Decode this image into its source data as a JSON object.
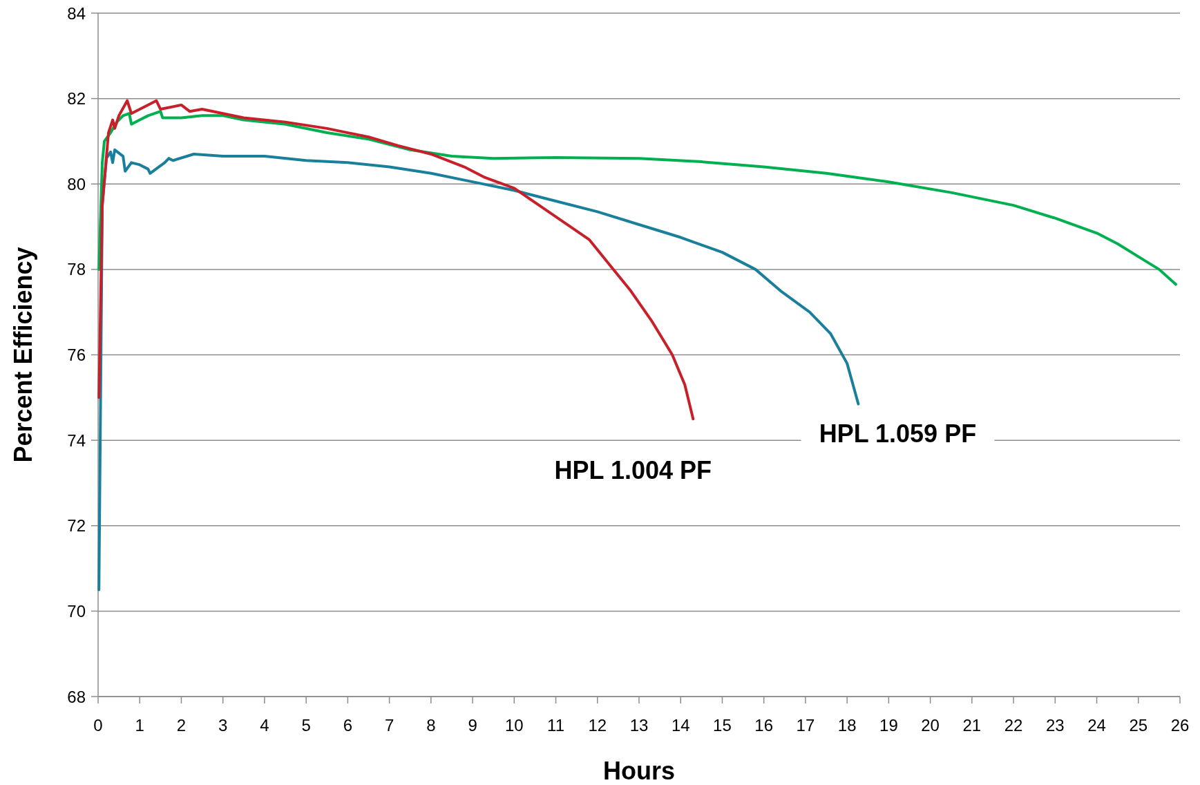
{
  "chart_data": {
    "type": "line",
    "xlabel": "Hours",
    "ylabel": "Percent Efficiency",
    "xlim": [
      0,
      26
    ],
    "ylim": [
      68,
      84
    ],
    "xticks": [
      0,
      1,
      2,
      3,
      4,
      5,
      6,
      7,
      8,
      9,
      10,
      11,
      12,
      13,
      14,
      15,
      16,
      17,
      18,
      19,
      20,
      21,
      22,
      23,
      24,
      25,
      26
    ],
    "yticks": [
      68,
      70,
      72,
      74,
      76,
      78,
      80,
      82,
      84
    ],
    "grid": "y",
    "marker": "none",
    "line_style": "solid",
    "series": [
      {
        "color": "#00b050",
        "x": [
          0.02,
          0.1,
          0.15,
          0.3,
          0.45,
          0.6,
          0.75,
          0.8,
          1,
          1.2,
          1.5,
          1.55,
          2,
          2.5,
          3,
          3.5,
          4.5,
          5.5,
          6.5,
          7.5,
          8.5,
          9.5,
          11,
          13,
          14.5,
          16,
          17.5,
          19,
          20.5,
          22,
          23,
          24,
          24.5,
          25,
          25.5,
          25.9
        ],
        "values": [
          78,
          80.5,
          81,
          81.2,
          81.45,
          81.6,
          81.65,
          81.4,
          81.5,
          81.6,
          81.7,
          81.55,
          81.55,
          81.6,
          81.6,
          81.5,
          81.4,
          81.2,
          81.05,
          80.8,
          80.65,
          80.6,
          80.62,
          80.6,
          80.52,
          80.4,
          80.25,
          80.05,
          79.8,
          79.5,
          79.2,
          78.85,
          78.6,
          78.3,
          78,
          77.65
        ]
      },
      {
        "name": "HPL 1.059 PF",
        "color": "#1a7f9b",
        "x": [
          0.02,
          0.1,
          0.2,
          0.3,
          0.35,
          0.4,
          0.6,
          0.65,
          0.8,
          1,
          1.2,
          1.25,
          1.6,
          1.7,
          1.8,
          2.3,
          3,
          4,
          5,
          6,
          7,
          8,
          9,
          10,
          11,
          12,
          13,
          14,
          15,
          15.8,
          16.4,
          17.1,
          17.6,
          18,
          18.27
        ],
        "values": [
          70.5,
          79.5,
          80.6,
          80.75,
          80.5,
          80.8,
          80.65,
          80.3,
          80.5,
          80.45,
          80.35,
          80.25,
          80.5,
          80.6,
          80.55,
          80.7,
          80.65,
          80.65,
          80.55,
          80.5,
          80.4,
          80.25,
          80.05,
          79.85,
          79.6,
          79.35,
          79.05,
          78.75,
          78.4,
          78,
          77.5,
          77,
          76.5,
          75.8,
          74.85
        ]
      },
      {
        "name": "HPL 1.004 PF",
        "color": "#c8202a",
        "x": [
          0.02,
          0.1,
          0.25,
          0.35,
          0.4,
          0.5,
          0.7,
          0.8,
          1.1,
          1.4,
          1.5,
          2,
          2.2,
          2.5,
          3,
          3.5,
          4.5,
          5.5,
          6.5,
          7.2,
          8,
          8.8,
          9.3,
          10,
          10.6,
          11.2,
          11.8,
          12.3,
          12.8,
          13.3,
          13.8,
          14.1,
          14.3
        ],
        "values": [
          75,
          79.5,
          81.2,
          81.5,
          81.3,
          81.6,
          81.95,
          81.65,
          81.8,
          81.95,
          81.75,
          81.85,
          81.7,
          81.75,
          81.65,
          81.55,
          81.45,
          81.3,
          81.1,
          80.9,
          80.7,
          80.4,
          80.15,
          79.9,
          79.5,
          79.1,
          78.7,
          78.1,
          77.5,
          76.8,
          76,
          75.3,
          74.5
        ]
      }
    ]
  }
}
